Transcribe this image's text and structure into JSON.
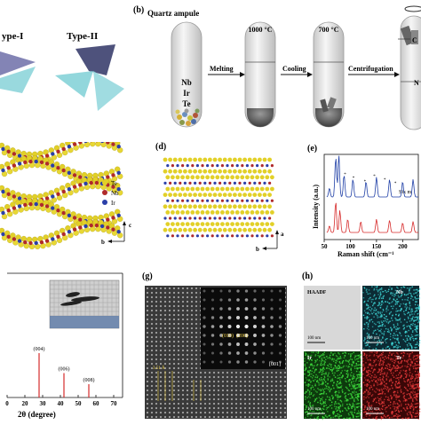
{
  "figure": {
    "panel_labels": {
      "b": "(b)",
      "d": "(d)",
      "e": "(e)",
      "g": "(g)",
      "h": "(h)"
    },
    "panel_a": {
      "type1": "ype-I",
      "type2": "Type-II"
    },
    "panel_b": {
      "ampule_label": "Quartz ampule",
      "elements": [
        "Nb",
        "Ir",
        "Te"
      ],
      "steps": [
        "Melting",
        "Cooling",
        "Centrifugation"
      ],
      "temps": [
        "1000 °C",
        "700 °C"
      ],
      "side_labels": [
        "C",
        "N"
      ]
    },
    "panel_c": {
      "legend": [
        "Te",
        "Nb",
        "Ir"
      ],
      "axis_c": "c",
      "axis_b": "b"
    },
    "panel_d": {
      "axis_a": "a",
      "axis_b": "b"
    },
    "panel_e": {
      "ylabel": "Intensity (a.u.)",
      "xlabel": "Raman shift (cm⁻¹",
      "annotation": "Six m",
      "colors": {
        "top": "#1f3fa6",
        "bottom": "#d62b2b"
      }
    },
    "panel_f": {
      "xlabel": "2θ (degree)",
      "ticks": [
        "0",
        "20",
        "30",
        "40",
        "50",
        "60",
        "70"
      ]
    },
    "panel_g": {
      "miller": [
        "(010)",
        "(200)"
      ],
      "zone": "[001]",
      "dspacing": "3.51 Å"
    },
    "panel_h": {
      "tiles": [
        "HAADF",
        "Nb",
        "Ir",
        "Te"
      ],
      "scale": "100 nm"
    }
  },
  "chart_data": [
    {
      "type": "bar",
      "title": "",
      "xlabel": "2θ (degree)",
      "ylabel": "",
      "xlim": [
        10,
        75
      ],
      "categories": [
        "(004)",
        "(006)",
        "(008)"
      ],
      "x": [
        28,
        42,
        56
      ],
      "values": [
        1.0,
        0.55,
        0.3
      ],
      "tick_labels": [
        "0",
        "20",
        "30",
        "40",
        "50",
        "60",
        "70"
      ]
    },
    {
      "type": "line",
      "title": "",
      "xlabel": "Raman shift (cm⁻¹",
      "ylabel": "Intensity (a.u.)",
      "series": [
        {
          "values": [
            [
              60,
              0.2
            ],
            [
              72,
              0.9
            ],
            [
              78,
              0.95
            ],
            [
              88,
              0.5
            ],
            [
              105,
              0.4
            ],
            [
              130,
              0.35
            ],
            [
              150,
              0.45
            ],
            [
              175,
              0.4
            ],
            [
              200,
              0.35
            ],
            [
              220,
              0.4
            ]
          ]
        },
        {
          "values": [
            [
              60,
              0.15
            ],
            [
              72,
              0.7
            ],
            [
              80,
              0.5
            ],
            [
              95,
              0.3
            ],
            [
              120,
              0.25
            ],
            [
              150,
              0.3
            ],
            [
              175,
              0.28
            ],
            [
              200,
              0.22
            ],
            [
              220,
              0.25
            ]
          ]
        }
      ],
      "x_ticks": [
        "50",
        "100",
        "150",
        "200"
      ]
    }
  ]
}
